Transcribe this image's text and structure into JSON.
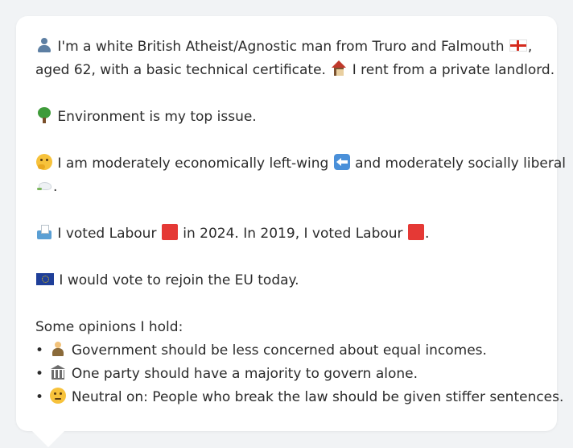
{
  "profile": {
    "line1_a": "I'm a white British Atheist/Agnostic man from Truro and Falmouth",
    "line1_b": ",",
    "line2_a": "aged 62, with a basic technical certificate.",
    "line2_b": "I rent from a private landlord.",
    "environment": "Environment is my top issue.",
    "politics_a": "I am moderately economically left-wing",
    "politics_b": "and moderately socially liberal",
    "politics_end": ".",
    "vote_a": "I voted Labour",
    "vote_b": "in 2024. In 2019, I voted Labour",
    "vote_end": ".",
    "eu": "I would vote to rejoin the EU today.",
    "opinions_heading": "Some opinions I hold:",
    "bullet_char": "•",
    "opinions": [
      "Government should be less concerned about equal incomes.",
      "One party should have a majority to govern alone.",
      "Neutral on: People who break the law should be given stiffer sentences."
    ]
  },
  "icons": {
    "person": "person-silhouette-icon",
    "england_flag": "england-flag-icon",
    "house": "house-icon",
    "tree": "deciduous-tree-icon",
    "thinking": "thinking-face-icon",
    "left_arrow": "left-arrow-icon",
    "dove": "dove-icon",
    "ballot": "ballot-box-icon",
    "labour": "red-square-icon",
    "eu_flag": "eu-flag-icon",
    "opinion_1": "person-with-scales-icon",
    "opinion_2": "classical-building-icon",
    "opinion_3": "neutral-face-icon"
  },
  "colors": {
    "background": "#f1f3f5",
    "card": "#ffffff",
    "text": "#2b2b2b",
    "labour_red": "#e53935"
  }
}
